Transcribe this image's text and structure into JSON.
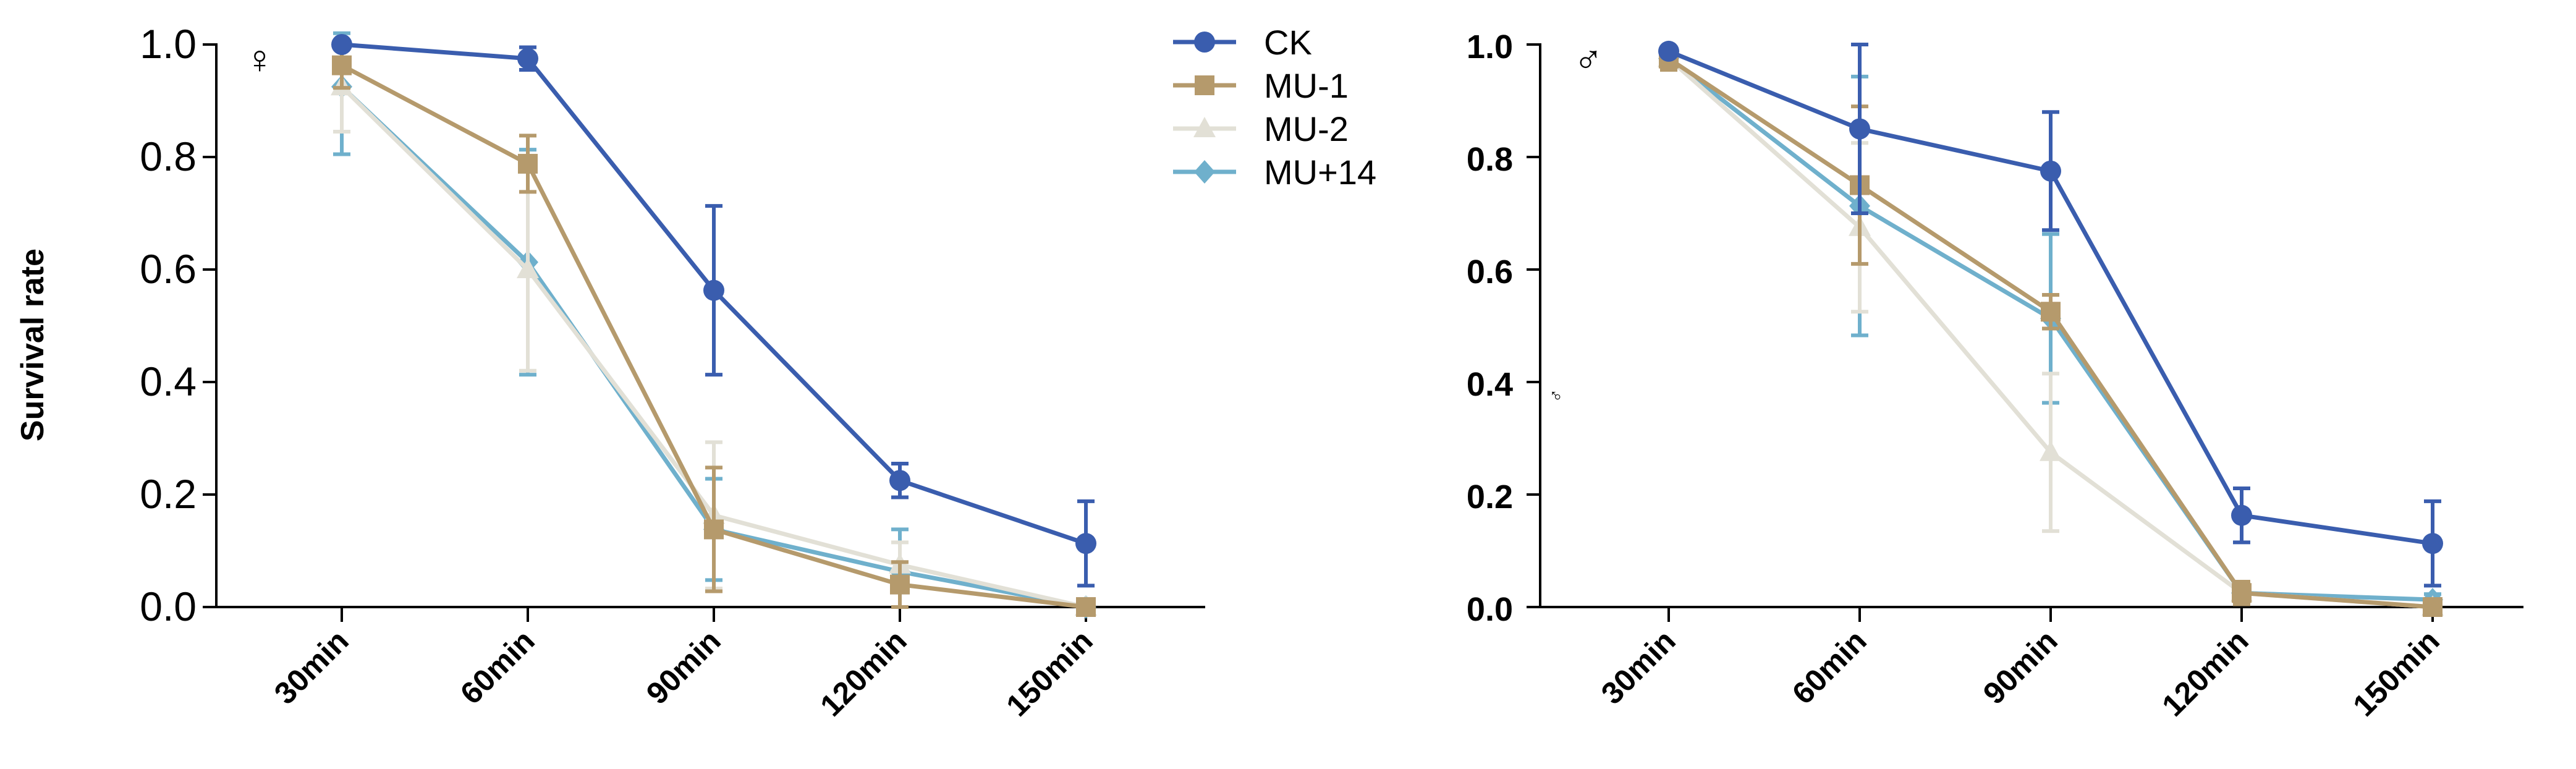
{
  "figure": {
    "ylabel": "Survival rate",
    "legend": {
      "placement": "top-center",
      "entries": [
        "CK",
        "MU-1",
        "MU-2",
        "MU+14"
      ]
    }
  },
  "colors": {
    "CK": "#3A5DAE",
    "MU-1": "#B59A6C",
    "MU-2": "#E2E0D6",
    "MU+14": "#6FB0CC",
    "axis": "#000000"
  },
  "chart_data": [
    {
      "type": "line",
      "title": "",
      "annotation": "♀",
      "xlabel": "",
      "ylabel": "Survival rate",
      "categories": [
        "30min",
        "60min",
        "90min",
        "120min",
        "150min"
      ],
      "ylim": [
        0,
        1.0
      ],
      "yticks": [
        "0.0",
        "0.2",
        "0.4",
        "0.6",
        "0.8",
        "1.0"
      ],
      "ytick_style": "normal",
      "grid": false,
      "series": [
        {
          "name": "CK",
          "marker": "circle",
          "values": [
            1.0,
            0.975,
            0.563,
            0.225,
            0.113
          ],
          "errors": [
            0.0,
            0.02,
            0.15,
            0.03,
            0.075
          ]
        },
        {
          "name": "MU-1",
          "marker": "square",
          "values": [
            0.963,
            0.788,
            0.138,
            0.04,
            0.0
          ],
          "errors": [
            0.04,
            0.05,
            0.11,
            0.04,
            0.0
          ]
        },
        {
          "name": "MU-2",
          "marker": "triangle",
          "values": [
            0.925,
            0.6,
            0.163,
            0.075,
            0.0
          ],
          "errors": [
            0.08,
            0.18,
            0.13,
            0.04,
            0.0
          ]
        },
        {
          "name": "MU+14",
          "marker": "diamond",
          "values": [
            0.925,
            0.613,
            0.138,
            0.063,
            0.0
          ],
          "errors": [
            0.12,
            0.2,
            0.09,
            0.075,
            0.0
          ]
        }
      ]
    },
    {
      "type": "line",
      "title": "",
      "annotation": "♂",
      "annotation_small": "♂",
      "xlabel": "",
      "ylabel": "",
      "categories": [
        "30min",
        "60min",
        "90min",
        "120min",
        "150min"
      ],
      "ylim": [
        0,
        1.0
      ],
      "yticks": [
        "0.0",
        "0.2",
        "0.4",
        "0.6",
        "0.8",
        "1.0"
      ],
      "ytick_style": "bold",
      "grid": false,
      "series": [
        {
          "name": "CK",
          "marker": "circle",
          "values": [
            0.988,
            0.85,
            0.775,
            0.163,
            0.113
          ],
          "errors": [
            0.0,
            0.15,
            0.105,
            0.048,
            0.075
          ]
        },
        {
          "name": "MU-1",
          "marker": "square",
          "values": [
            0.975,
            0.75,
            0.525,
            0.025,
            0.0
          ],
          "errors": [
            0.02,
            0.14,
            0.03,
            0.02,
            0.0
          ]
        },
        {
          "name": "MU-2",
          "marker": "triangle",
          "values": [
            0.975,
            0.675,
            0.275,
            0.025,
            0.0
          ],
          "errors": [
            0.02,
            0.15,
            0.14,
            0.02,
            0.0
          ]
        },
        {
          "name": "MU+14",
          "marker": "diamond",
          "values": [
            0.975,
            0.713,
            0.513,
            0.025,
            0.013
          ],
          "errors": [
            0.02,
            0.23,
            0.15,
            0.02,
            0.01
          ]
        }
      ]
    }
  ]
}
